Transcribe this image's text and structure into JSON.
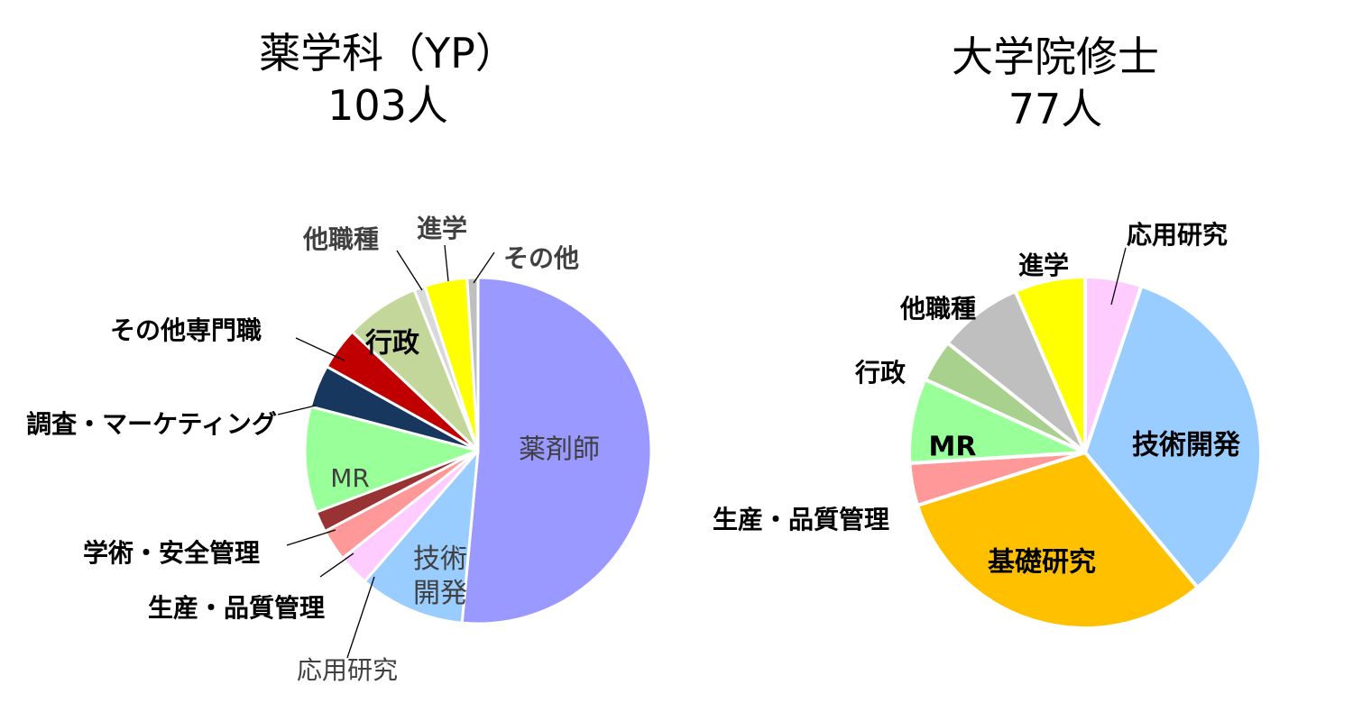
{
  "chart_data": [
    {
      "type": "pie",
      "title": "薬学科（YP）",
      "subtitle": "103人",
      "slices": [
        {
          "label": "薬剤師",
          "value": 50.5,
          "color": "#9999ff"
        },
        {
          "label": "技術開発",
          "value": 9.7,
          "color": "#99ccff"
        },
        {
          "label": "応用研究",
          "value": 2.9,
          "color": "#ffccff"
        },
        {
          "label": "生産・品質管理",
          "value": 2.9,
          "color": "#ff9999"
        },
        {
          "label": "学術・安全管理",
          "value": 1.9,
          "color": "#993333"
        },
        {
          "label": "MR",
          "value": 9.7,
          "color": "#99ff99"
        },
        {
          "label": "調査・マーケティング",
          "value": 3.9,
          "color": "#17375e"
        },
        {
          "label": "その他専門職",
          "value": 3.9,
          "color": "#c00000"
        },
        {
          "label": "行政",
          "value": 6.8,
          "color": "#c4d79b"
        },
        {
          "label": "他職種",
          "value": 1.0,
          "color": "#d9d9d9"
        },
        {
          "label": "進学",
          "value": 3.9,
          "color": "#ffff00"
        },
        {
          "label": "その他",
          "value": 1.0,
          "color": "#bfbfbf"
        }
      ]
    },
    {
      "type": "pie",
      "title": "大学院修士",
      "subtitle": "77人",
      "slices": [
        {
          "label": "応用研究",
          "value": 5.2,
          "color": "#ffccff"
        },
        {
          "label": "技術開発",
          "value": 33.8,
          "color": "#99ccff"
        },
        {
          "label": "基礎研究",
          "value": 31.2,
          "color": "#ffc000"
        },
        {
          "label": "生産・品質管理",
          "value": 3.9,
          "color": "#ff9999"
        },
        {
          "label": "MR",
          "value": 7.8,
          "color": "#99ff99"
        },
        {
          "label": "行政",
          "value": 3.9,
          "color": "#a9d18e"
        },
        {
          "label": "他職種",
          "value": 7.8,
          "color": "#bfbfbf"
        },
        {
          "label": "進学",
          "value": 6.5,
          "color": "#ffff00"
        }
      ]
    }
  ]
}
